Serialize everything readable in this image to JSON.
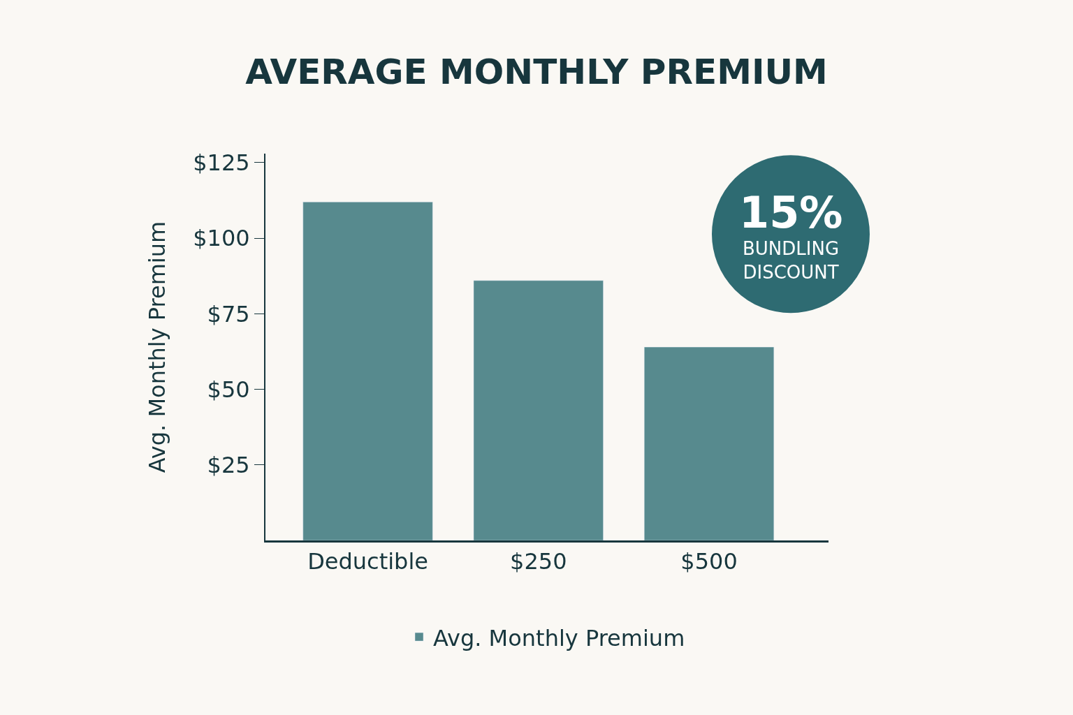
{
  "chart_data": {
    "type": "bar",
    "title": "AVERAGE MONTHLY PREMIUM",
    "ylabel": "Avg. Monthly Premium",
    "categories": [
      "Deductible",
      "$250",
      "$500"
    ],
    "series": [
      {
        "name": "Avg. Monthly Premium",
        "color": "#578a8e",
        "values": [
          112,
          86,
          64
        ]
      }
    ],
    "ylim": [
      0,
      128
    ],
    "yticks": [
      {
        "value": 25,
        "label": "$25"
      },
      {
        "value": 50,
        "label": "$50"
      },
      {
        "value": 75,
        "label": "$75"
      },
      {
        "value": 100,
        "label": "$100"
      },
      {
        "value": 125,
        "label": "$125"
      }
    ],
    "annotations": [
      "15%",
      "BUNDLING DISCOUNT"
    ],
    "grid": false,
    "legend": "bottom"
  }
}
